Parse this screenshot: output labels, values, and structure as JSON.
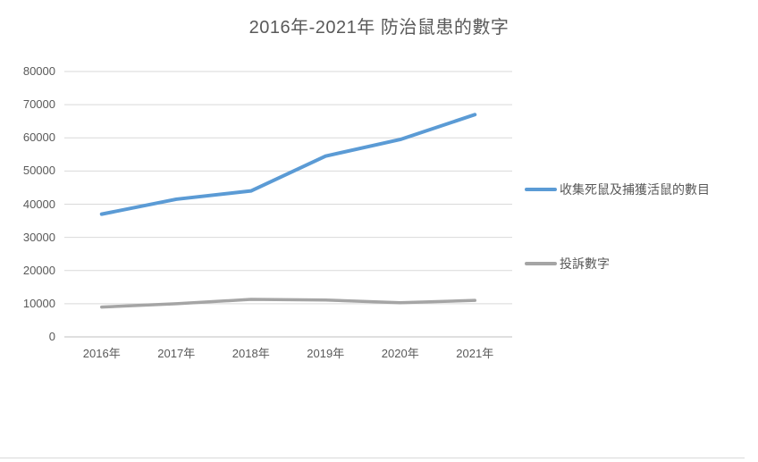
{
  "window": {
    "background": "#ffffff"
  },
  "chart": {
    "title": "2016年-2021年 防治鼠患的數字",
    "y_axis": {
      "labels": [
        "80000",
        "70000",
        "60000",
        "50000",
        "40000",
        "30000",
        "20000",
        "10000",
        "0"
      ]
    },
    "x_axis": {
      "labels": [
        "2016年",
        "2017年",
        "2018年",
        "2019年",
        "2020年",
        "2021年"
      ]
    },
    "legend": [
      {
        "label": "收集死鼠及捕獲活鼠的數目",
        "color": "#5B9BD5"
      },
      {
        "label": "投訴數字",
        "color": "#A5A5A5"
      }
    ],
    "colors": {
      "gridline": "#D9D9D9",
      "axis_line": "#BFBFBF",
      "text": "#595959",
      "series1": "#5B9BD5",
      "series2": "#A5A5A5",
      "frame_border": "#D9D9D9"
    }
  },
  "chart_data": {
    "type": "line",
    "title": "2016年-2021年 防治鼠患的數字",
    "categories": [
      "2016年",
      "2017年",
      "2018年",
      "2019年",
      "2020年",
      "2021年"
    ],
    "series": [
      {
        "name": "收集死鼠及捕獲活鼠的數目",
        "color": "#5B9BD5",
        "values": [
          37000,
          41500,
          44000,
          54500,
          59500,
          67000
        ]
      },
      {
        "name": "投訴數字",
        "color": "#A5A5A5",
        "values": [
          9000,
          10000,
          11300,
          11100,
          10300,
          11000
        ]
      }
    ],
    "xlabel": "",
    "ylabel": "",
    "ylim": [
      0,
      80000
    ],
    "ytick_step": 10000,
    "grid": true,
    "legend_position": "right"
  }
}
